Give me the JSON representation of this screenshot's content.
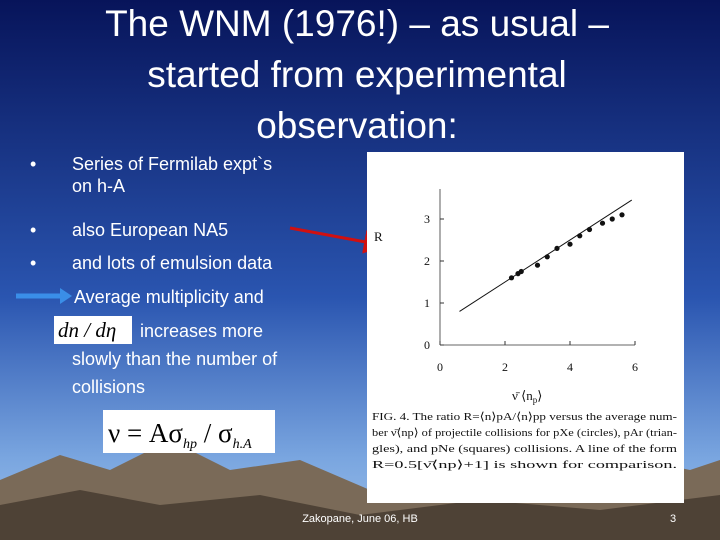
{
  "title": [
    "The WNM (1976!) – as usual –",
    "started from experimental",
    "observation:"
  ],
  "bullets": [
    {
      "lines": [
        "Series of Fermilab expt`s",
        "on h-A"
      ]
    },
    {
      "lines": [
        "also European NA5"
      ]
    },
    {
      "lines": [
        "and lots of emulsion data"
      ]
    }
  ],
  "arrow_item": {
    "lines": [
      "Average multiplicity and",
      "increases more",
      "slowly than the number of",
      "collisions"
    ],
    "inline_formula": "dn / dη"
  },
  "formula": {
    "main": "ν = Aσ",
    "sub1": "hp",
    "mid": " / σ",
    "sub2": "h.A"
  },
  "figure": {
    "y_label": "R",
    "x_label": {
      "main": "ν̄  ⟨n",
      "sub": "p",
      "end": "⟩"
    },
    "xticks": [
      0,
      2,
      4,
      6
    ],
    "yticks": [
      0,
      1,
      2,
      3
    ],
    "points": {
      "x": [
        2.2,
        2.4,
        2.5,
        3.0,
        3.3,
        3.6,
        4.0,
        4.3,
        4.6,
        5.0,
        5.3,
        5.6
      ],
      "y": [
        1.6,
        1.7,
        1.75,
        1.9,
        2.1,
        2.3,
        2.4,
        2.6,
        2.75,
        2.9,
        3.0,
        3.1
      ]
    },
    "caption": [
      "FIG. 4.  The ratio R=⟨n⟩pA/⟨n⟩pp versus the average num-",
      "ber ν̄⟨np⟩ of projectile collisions for pXe (circles), pAr (trian-",
      "gles), and pNe (squares) collisions.  A line of the form",
      "R=0.5[ν̄⟨np⟩+1] is shown for comparison."
    ]
  },
  "footer": "Zakopane, June 06, HB",
  "page_number": "3"
}
